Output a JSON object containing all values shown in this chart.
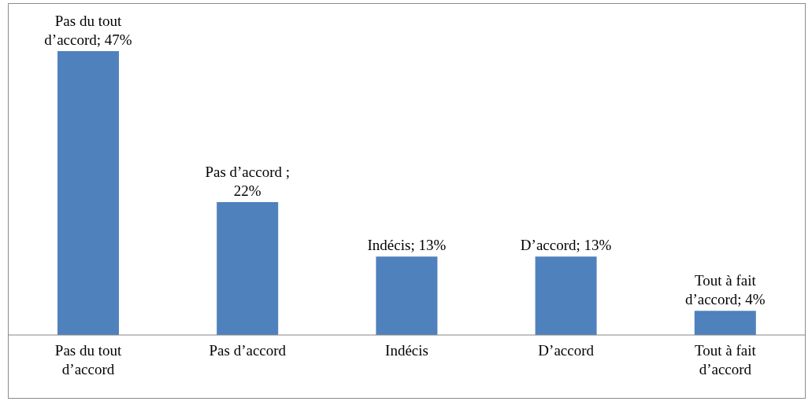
{
  "chart_data": {
    "type": "bar",
    "categories": [
      "Pas du tout d’accord",
      "Pas d’accord",
      "Indécis",
      "D’accord",
      "Tout à fait d’accord"
    ],
    "values": [
      47,
      22,
      13,
      13,
      4
    ],
    "value_labels": [
      "Pas du tout d’accord; 47%",
      "Pas d’accord ; 22%",
      "Indécis; 13%",
      "D’accord; 13%",
      "Tout à fait d’accord; 4%"
    ],
    "color": "#4f81bd"
  }
}
